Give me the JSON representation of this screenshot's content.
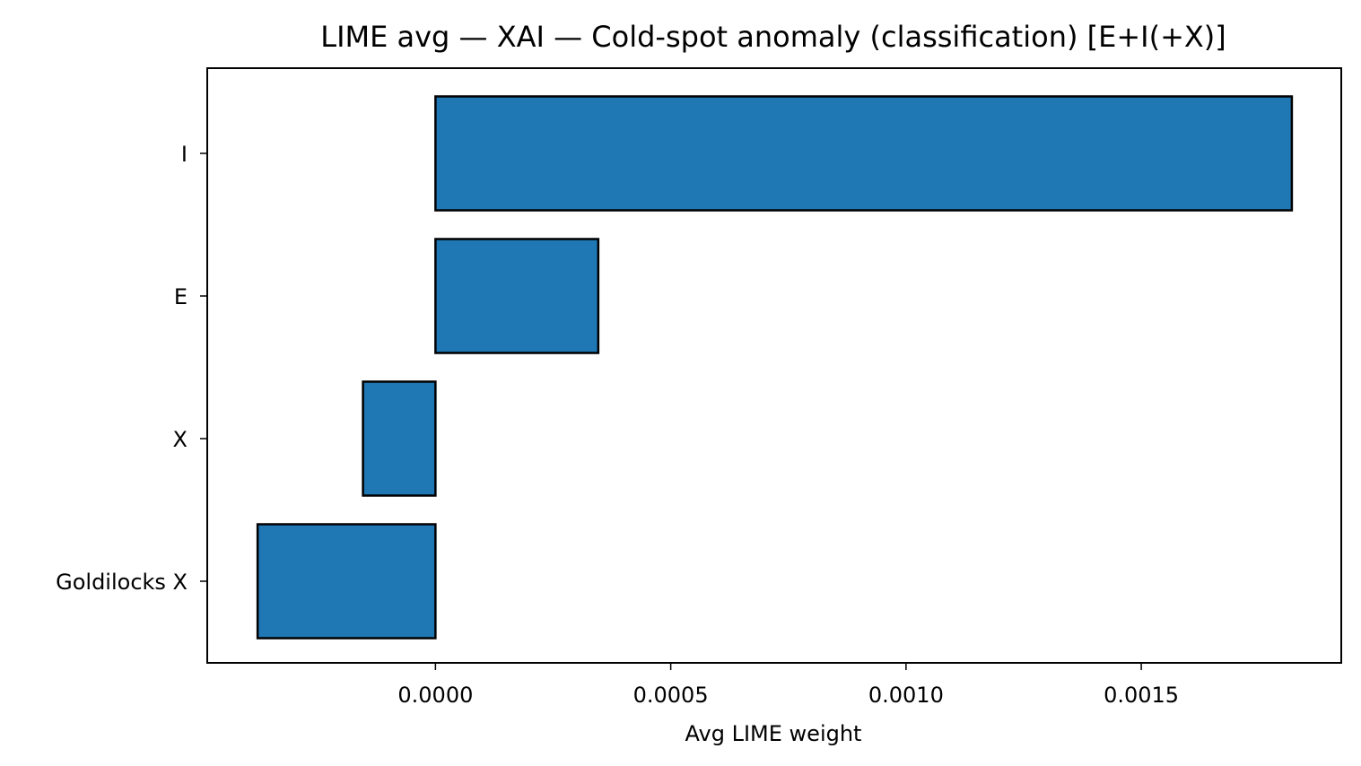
{
  "chart_data": {
    "type": "bar",
    "orientation": "horizontal",
    "title": "LIME avg — XAI — Cold-spot anomaly (classification) [E+I(+X)]",
    "xlabel": "Avg LIME weight",
    "ylabel": "",
    "categories": [
      "I",
      "E",
      "X",
      "Goldilocks X"
    ],
    "values": [
      0.00182,
      0.000346,
      -0.000154,
      -0.000378
    ],
    "xlim": [
      -0.000485,
      0.001925
    ],
    "xticks": [
      0.0,
      0.0005,
      0.001,
      0.0015
    ],
    "xtick_labels": [
      "0.0000",
      "0.0005",
      "0.0010",
      "0.0015"
    ],
    "grid": false,
    "legend": "none",
    "bar_color": "#1f77b4",
    "edge_color": "#000000"
  }
}
